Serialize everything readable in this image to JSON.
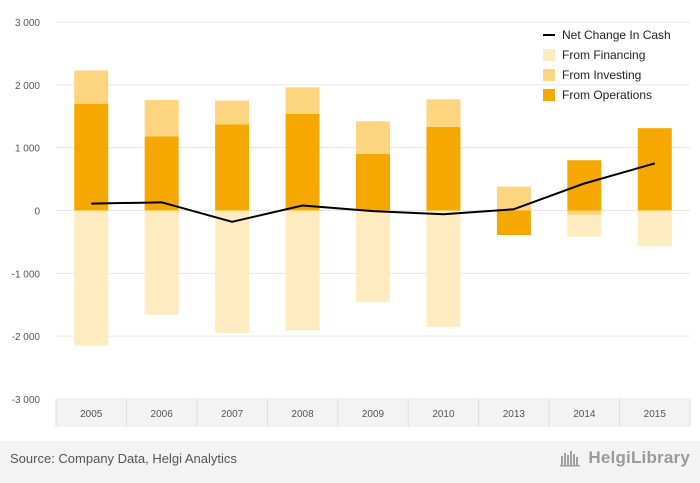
{
  "chart_data": {
    "type": "bar",
    "stacked": true,
    "categories": [
      "2005",
      "2006",
      "2007",
      "2008",
      "2009",
      "2010",
      "2013",
      "2014",
      "2015"
    ],
    "series": [
      {
        "name": "From Operations",
        "kind": "bar",
        "color": "#f5a800",
        "values": [
          1700,
          1180,
          1370,
          1540,
          900,
          1330,
          -390,
          800,
          1310
        ]
      },
      {
        "name": "From Investing",
        "kind": "bar",
        "color": "#fdd47f",
        "values": [
          530,
          580,
          380,
          420,
          520,
          440,
          380,
          -70,
          0
        ]
      },
      {
        "name": "From Financing",
        "kind": "bar",
        "color": "#feebc0",
        "values": [
          -2150,
          -1660,
          -1950,
          -1910,
          -1460,
          -1850,
          0,
          -350,
          -570
        ]
      },
      {
        "name": "Net Change In Cash",
        "kind": "line",
        "color": "#000000",
        "values": [
          110,
          130,
          -180,
          80,
          -10,
          -60,
          20,
          430,
          750
        ]
      }
    ],
    "yticks": [
      3000,
      2000,
      1000,
      0,
      -1000,
      -2000,
      -3000
    ],
    "ytick_labels": [
      "3 000",
      "2 000",
      "1 000",
      "0",
      "-1 000",
      "-2 000",
      "-3 000"
    ],
    "ylim": [
      -3000,
      3000
    ],
    "grid": true,
    "legend_position": "top-right"
  },
  "legend": [
    {
      "label": "Net Change In Cash",
      "color": "#000000",
      "shape": "line"
    },
    {
      "label": "From Financing",
      "color": "#feebc0",
      "shape": "square"
    },
    {
      "label": "From Investing",
      "color": "#fdd47f",
      "shape": "square"
    },
    {
      "label": "From Operations",
      "color": "#f5a800",
      "shape": "square"
    }
  ],
  "footer": {
    "source": "Source: Company Data, Helgi Analytics",
    "brand": "HelgiLibrary"
  }
}
